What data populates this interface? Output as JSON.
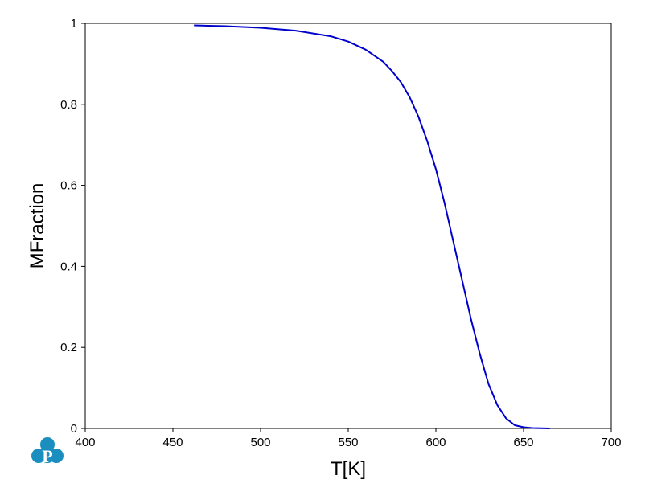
{
  "logo": {
    "letter": "P",
    "color": "#1a8fbf"
  },
  "chart_data": {
    "type": "line",
    "xlabel": "T[K]",
    "ylabel": "MFraction",
    "xlim": [
      400,
      700
    ],
    "ylim": [
      0,
      1
    ],
    "xticks": [
      400,
      450,
      500,
      550,
      600,
      650,
      700
    ],
    "yticks": [
      0,
      0.2,
      0.4,
      0.6,
      0.8,
      1
    ],
    "xtick_labels": [
      "400",
      "450",
      "500",
      "550",
      "600",
      "650",
      "700"
    ],
    "ytick_labels": [
      "0",
      "0.2",
      "0.4",
      "0.6",
      "0.8",
      "1"
    ],
    "grid": false,
    "series": [
      {
        "color": "#0000cc",
        "x": [
          462,
          480,
          500,
          520,
          540,
          550,
          560,
          570,
          575,
          580,
          585,
          590,
          595,
          600,
          605,
          610,
          615,
          620,
          625,
          630,
          635,
          640,
          645,
          650,
          655,
          660,
          665
        ],
        "y": [
          0.995,
          0.993,
          0.989,
          0.982,
          0.968,
          0.955,
          0.935,
          0.905,
          0.882,
          0.855,
          0.818,
          0.77,
          0.71,
          0.64,
          0.555,
          0.46,
          0.365,
          0.27,
          0.185,
          0.11,
          0.058,
          0.025,
          0.008,
          0.003,
          0.001,
          0.0005,
          0.0
        ]
      }
    ]
  }
}
